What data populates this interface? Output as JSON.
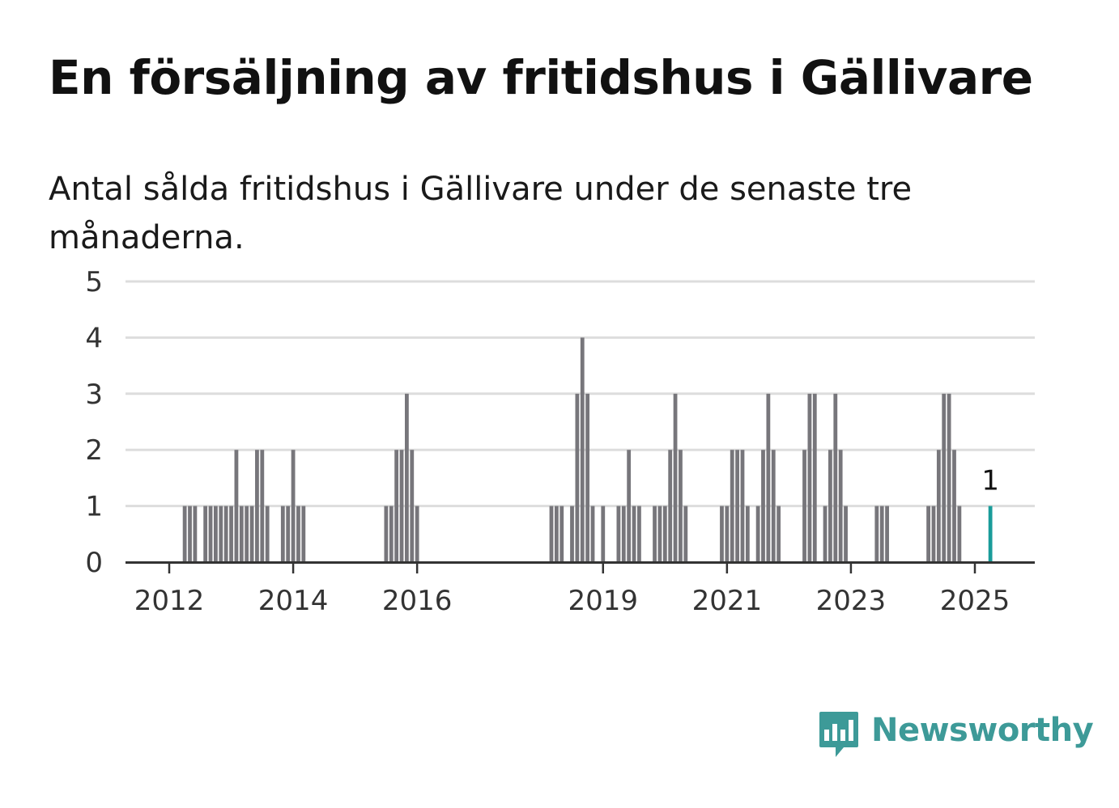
{
  "header": {
    "title": "En försäljning av fritidshus i Gällivare",
    "subtitle": "Antal sålda fritidshus i Gällivare under de senaste tre månaderna."
  },
  "brand": {
    "name": "Newsworthy",
    "icon": "newsworthy-logo-icon",
    "color": "#3d9a98"
  },
  "colors": {
    "bar": "#77767b",
    "highlight": "#1a9c9a",
    "grid": "#dddddd",
    "axis": "#333333"
  },
  "chart_data": {
    "type": "bar",
    "x_unit": "month",
    "ylim": [
      0,
      5
    ],
    "y_ticks": [
      0,
      1,
      2,
      3,
      4,
      5
    ],
    "x_ticks": [
      "2012",
      "2014",
      "2016",
      "2019",
      "2021",
      "2023",
      "2025"
    ],
    "grid": "horizontal",
    "highlight": {
      "x": "2025-04",
      "value": 1,
      "label": "1"
    },
    "series": [
      {
        "points": [
          [
            "2012-04",
            1
          ],
          [
            "2012-05",
            1
          ],
          [
            "2012-06",
            1
          ],
          [
            "2012-08",
            1
          ],
          [
            "2012-09",
            1
          ],
          [
            "2012-10",
            1
          ],
          [
            "2012-11",
            1
          ],
          [
            "2012-12",
            1
          ],
          [
            "2013-01",
            1
          ],
          [
            "2013-02",
            2
          ],
          [
            "2013-03",
            1
          ],
          [
            "2013-04",
            1
          ],
          [
            "2013-05",
            1
          ],
          [
            "2013-06",
            2
          ],
          [
            "2013-07",
            2
          ],
          [
            "2013-08",
            1
          ],
          [
            "2013-11",
            1
          ],
          [
            "2013-12",
            1
          ],
          [
            "2014-01",
            2
          ],
          [
            "2014-02",
            1
          ],
          [
            "2014-03",
            1
          ],
          [
            "2015-07",
            1
          ],
          [
            "2015-08",
            1
          ],
          [
            "2015-09",
            2
          ],
          [
            "2015-10",
            2
          ],
          [
            "2015-11",
            3
          ],
          [
            "2015-12",
            2
          ],
          [
            "2016-01",
            1
          ],
          [
            "2018-03",
            1
          ],
          [
            "2018-04",
            1
          ],
          [
            "2018-05",
            1
          ],
          [
            "2018-07",
            1
          ],
          [
            "2018-08",
            3
          ],
          [
            "2018-09",
            4
          ],
          [
            "2018-10",
            3
          ],
          [
            "2018-11",
            1
          ],
          [
            "2019-01",
            1
          ],
          [
            "2019-04",
            1
          ],
          [
            "2019-05",
            1
          ],
          [
            "2019-06",
            2
          ],
          [
            "2019-07",
            1
          ],
          [
            "2019-08",
            1
          ],
          [
            "2019-11",
            1
          ],
          [
            "2019-12",
            1
          ],
          [
            "2020-01",
            1
          ],
          [
            "2020-02",
            2
          ],
          [
            "2020-03",
            3
          ],
          [
            "2020-04",
            2
          ],
          [
            "2020-05",
            1
          ],
          [
            "2020-12",
            1
          ],
          [
            "2021-01",
            1
          ],
          [
            "2021-02",
            2
          ],
          [
            "2021-03",
            2
          ],
          [
            "2021-04",
            2
          ],
          [
            "2021-05",
            1
          ],
          [
            "2021-07",
            1
          ],
          [
            "2021-08",
            2
          ],
          [
            "2021-09",
            3
          ],
          [
            "2021-10",
            2
          ],
          [
            "2021-11",
            1
          ],
          [
            "2022-04",
            2
          ],
          [
            "2022-05",
            3
          ],
          [
            "2022-06",
            3
          ],
          [
            "2022-08",
            1
          ],
          [
            "2022-09",
            2
          ],
          [
            "2022-10",
            3
          ],
          [
            "2022-11",
            2
          ],
          [
            "2022-12",
            1
          ],
          [
            "2023-06",
            1
          ],
          [
            "2023-07",
            1
          ],
          [
            "2023-08",
            1
          ],
          [
            "2024-04",
            1
          ],
          [
            "2024-05",
            1
          ],
          [
            "2024-06",
            2
          ],
          [
            "2024-07",
            3
          ],
          [
            "2024-08",
            3
          ],
          [
            "2024-09",
            2
          ],
          [
            "2024-10",
            1
          ],
          [
            "2025-04",
            1
          ]
        ]
      }
    ]
  }
}
